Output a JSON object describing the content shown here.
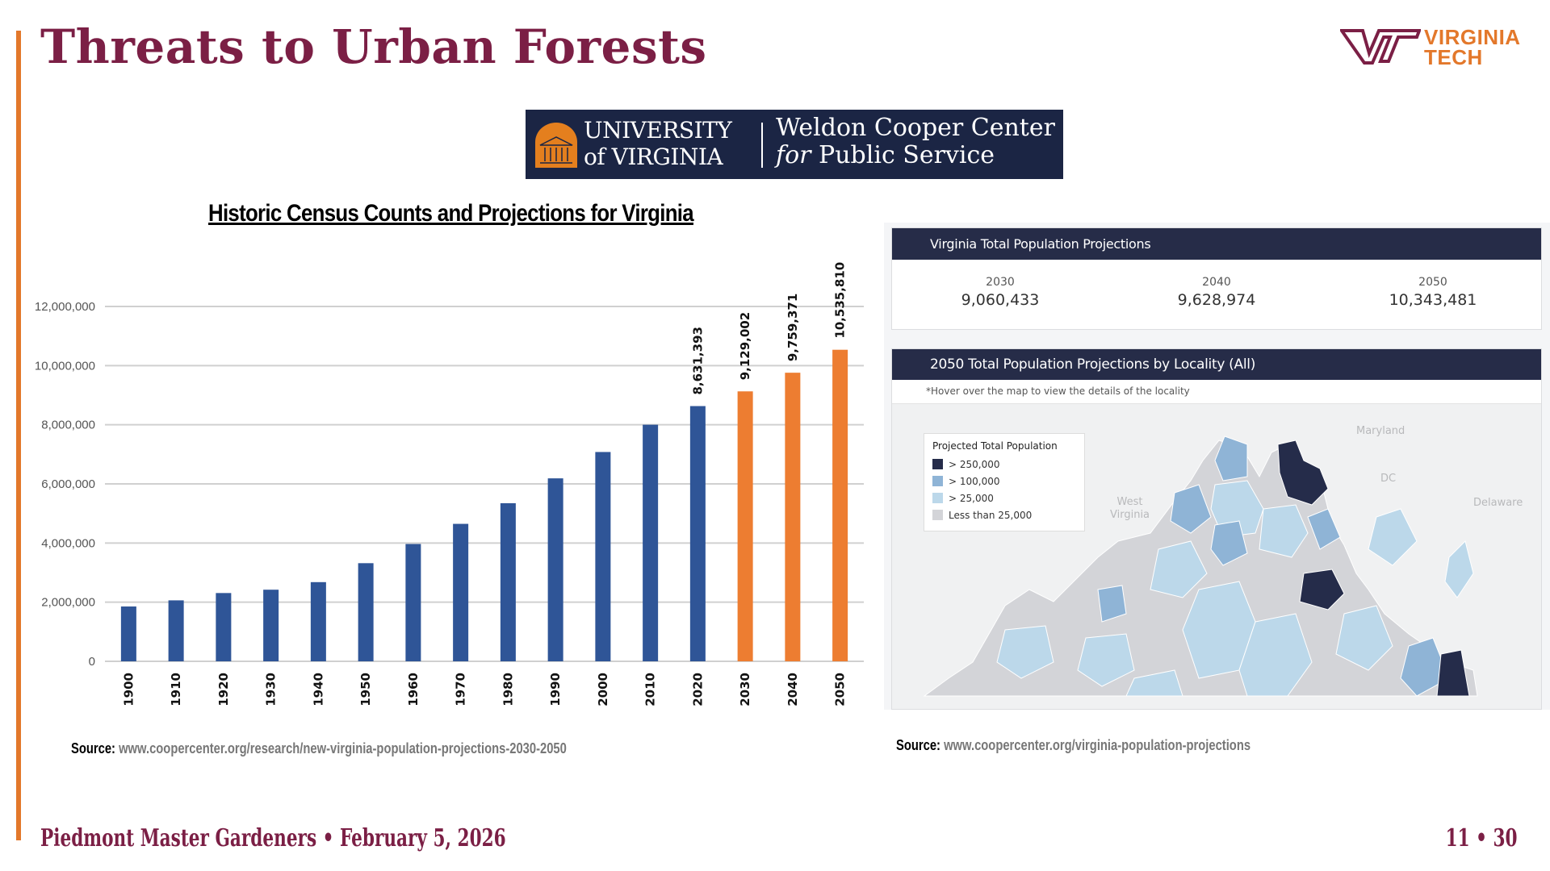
{
  "slide": {
    "title": "Threats to Urban Forests",
    "footer": "Piedmont Master Gardeners • February 5, 2026",
    "page_number": "11 • 30",
    "colors": {
      "maroon": "#7b1f45",
      "orange": "#e3782b",
      "navy": "#262c48"
    }
  },
  "logos": {
    "vt": {
      "line1": "VIRGINIA",
      "line2": "TECH"
    },
    "uva": {
      "line1": "UNIVERSITY",
      "line2": "of VIRGINIA",
      "center_line1": "Weldon Cooper Center",
      "center_line2_italic": "for",
      "center_line2": " Public Service"
    }
  },
  "chart_data": {
    "type": "bar",
    "title": "Historic Census Counts and Projections for Virginia",
    "xlabel": "",
    "ylabel": "",
    "ylim": [
      0,
      12000000
    ],
    "yticks": [
      0,
      2000000,
      4000000,
      6000000,
      8000000,
      10000000,
      12000000
    ],
    "ytick_labels": [
      "0",
      "2,000,000",
      "4,000,000",
      "6,000,000",
      "8,000,000",
      "10,000,000",
      "12,000,000"
    ],
    "grid": true,
    "categories": [
      "1900",
      "1910",
      "1920",
      "1930",
      "1940",
      "1950",
      "1960",
      "1970",
      "1980",
      "1990",
      "2000",
      "2010",
      "2020",
      "2030",
      "2040",
      "2050"
    ],
    "values": [
      1854184,
      2061612,
      2309187,
      2421851,
      2677773,
      3318680,
      3966949,
      4648494,
      5346818,
      6187358,
      7078515,
      8001024,
      8631393,
      9129002,
      9759371,
      10535810
    ],
    "kind": [
      "census",
      "census",
      "census",
      "census",
      "census",
      "census",
      "census",
      "census",
      "census",
      "census",
      "census",
      "census",
      "census",
      "projection",
      "projection",
      "projection"
    ],
    "data_labels": {
      "12": "8,631,393",
      "13": "9,129,002",
      "14": "9,759,371",
      "15": "10,535,810"
    },
    "series_colors": {
      "census": "#2f5597",
      "projection": "#ed7d31"
    }
  },
  "sources": {
    "label": "Source:",
    "left_url": "www.coopercenter.org/research/new-virginia-population-projections-2030-2050",
    "right_url": "www.coopercenter.org/virginia-population-projections"
  },
  "projections_panel": {
    "header": "Virginia Total Population Projections",
    "items": [
      {
        "year": "2030",
        "value": "9,060,433"
      },
      {
        "year": "2040",
        "value": "9,628,974"
      },
      {
        "year": "2050",
        "value": "10,343,481"
      }
    ]
  },
  "map_panel": {
    "header": "2050 Total Population Projections by Locality (All)",
    "hint": "*Hover over the map to view the details of the locality",
    "legend_title": "Projected Total Population",
    "legend": [
      {
        "label": "> 250,000",
        "color": "#252c4a"
      },
      {
        "label": "> 100,000",
        "color": "#8fb4d6"
      },
      {
        "label": "> 25,000",
        "color": "#bcd8ea"
      },
      {
        "label": "Less than 25,000",
        "color": "#d3d4d8"
      }
    ],
    "places": {
      "maryland": "Maryland",
      "dc": "DC",
      "delaware": "Delaware",
      "west_virginia_1": "West",
      "west_virginia_2": "Virginia"
    }
  }
}
